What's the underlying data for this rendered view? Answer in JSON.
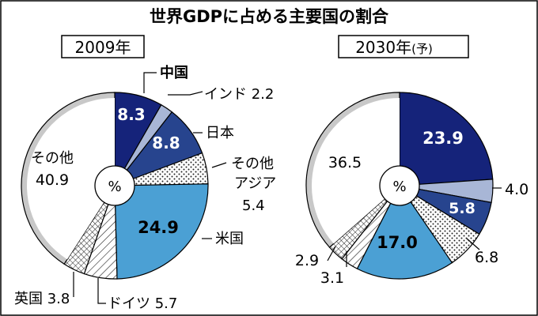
{
  "title": "世界GDPに占める主要国の割合",
  "colors": {
    "china": "#15237a",
    "india": "#a8b6d6",
    "japan": "#27448e",
    "other_asia": "#ffffff",
    "usa": "#4ba0d4",
    "germany": "#ffffff",
    "uk": "#ffffff",
    "other": "#ffffff",
    "ring": "#c8c8c8"
  },
  "chart_data": [
    {
      "type": "pie",
      "title": "2009年",
      "center_label": "%",
      "slices": [
        {
          "key": "china",
          "name": "中国",
          "value": 8.3,
          "value_text": "8.3",
          "fill": "solid",
          "color_key": "china"
        },
        {
          "key": "india",
          "name": "インド",
          "value": 2.2,
          "value_text": "2.2",
          "fill": "solid",
          "color_key": "india"
        },
        {
          "key": "japan",
          "name": "日本",
          "value": 8.8,
          "value_text": "8.8",
          "fill": "solid",
          "color_key": "japan"
        },
        {
          "key": "other_asia",
          "name_line1": "その他",
          "name_line2": "アジア",
          "value": 5.4,
          "value_text": "5.4",
          "fill": "dots",
          "color_key": "other_asia"
        },
        {
          "key": "usa",
          "name": "米国",
          "value": 24.9,
          "value_text": "24.9",
          "fill": "solid",
          "color_key": "usa"
        },
        {
          "key": "germany",
          "name": "ドイツ",
          "value": 5.7,
          "value_text": "5.7",
          "fill": "diag",
          "color_key": "germany"
        },
        {
          "key": "uk",
          "name": "英国",
          "value": 3.8,
          "value_text": "3.8",
          "fill": "cross",
          "color_key": "uk"
        },
        {
          "key": "other",
          "name": "その他",
          "value": 40.9,
          "value_text": "40.9",
          "fill": "solid",
          "color_key": "other"
        }
      ]
    },
    {
      "type": "pie",
      "title_main": "2030年",
      "title_note": "(予)",
      "center_label": "%",
      "slices": [
        {
          "key": "china",
          "value": 23.9,
          "value_text": "23.9",
          "fill": "solid",
          "color_key": "china"
        },
        {
          "key": "india",
          "value": 4.0,
          "value_text": "4.0",
          "fill": "solid",
          "color_key": "india"
        },
        {
          "key": "japan",
          "value": 5.8,
          "value_text": "5.8",
          "fill": "solid",
          "color_key": "japan"
        },
        {
          "key": "other_asia",
          "value": 6.8,
          "value_text": "6.8",
          "fill": "dots",
          "color_key": "other_asia"
        },
        {
          "key": "usa",
          "value": 17.0,
          "value_text": "17.0",
          "fill": "solid",
          "color_key": "usa"
        },
        {
          "key": "germany",
          "value": 3.1,
          "value_text": "3.1",
          "fill": "diag",
          "color_key": "germany"
        },
        {
          "key": "uk",
          "value": 2.9,
          "value_text": "2.9",
          "fill": "cross",
          "color_key": "uk"
        },
        {
          "key": "other",
          "value": 36.5,
          "value_text": "36.5",
          "fill": "solid",
          "color_key": "other"
        }
      ]
    }
  ]
}
